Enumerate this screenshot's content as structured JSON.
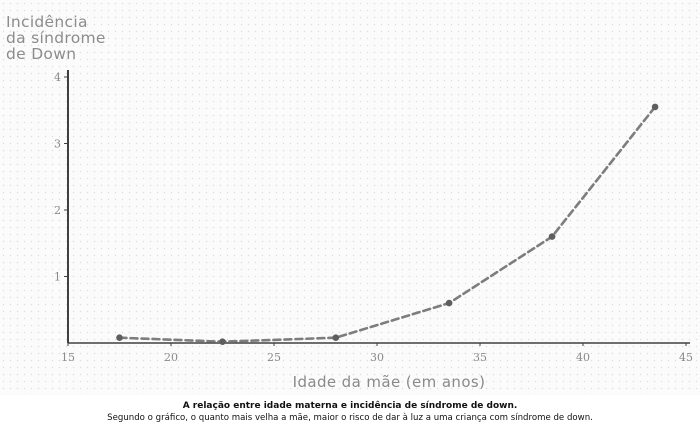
{
  "chart_data": {
    "type": "line",
    "ylabel_lines": [
      "Incidência",
      "da síndrome",
      "de Down"
    ],
    "xlabel": "Idade da mãe (em anos)",
    "x": [
      17.5,
      22.5,
      28,
      33.5,
      38.5,
      43.5
    ],
    "series": [
      {
        "values": [
          0.08,
          0.02,
          0.08,
          0.6,
          1.6,
          3.55
        ]
      }
    ],
    "xlim": [
      15,
      45
    ],
    "ylim": [
      0,
      4
    ],
    "x_ticks": [
      15,
      20,
      25,
      30,
      35,
      40,
      45
    ],
    "y_ticks": [
      1,
      2,
      3,
      4
    ],
    "grid": false,
    "line_style": "dashed",
    "colors": {
      "line": "#7d7d7d",
      "axis": "#404040",
      "labels": "#8a8a8a"
    }
  },
  "caption": {
    "title": "A relação entre idade materna e incidência de síndrome de down.",
    "text": "Segundo o gráfico, o quanto mais velha a mãe, maior o risco de dar à luz a uma criança com síndrome de down."
  }
}
